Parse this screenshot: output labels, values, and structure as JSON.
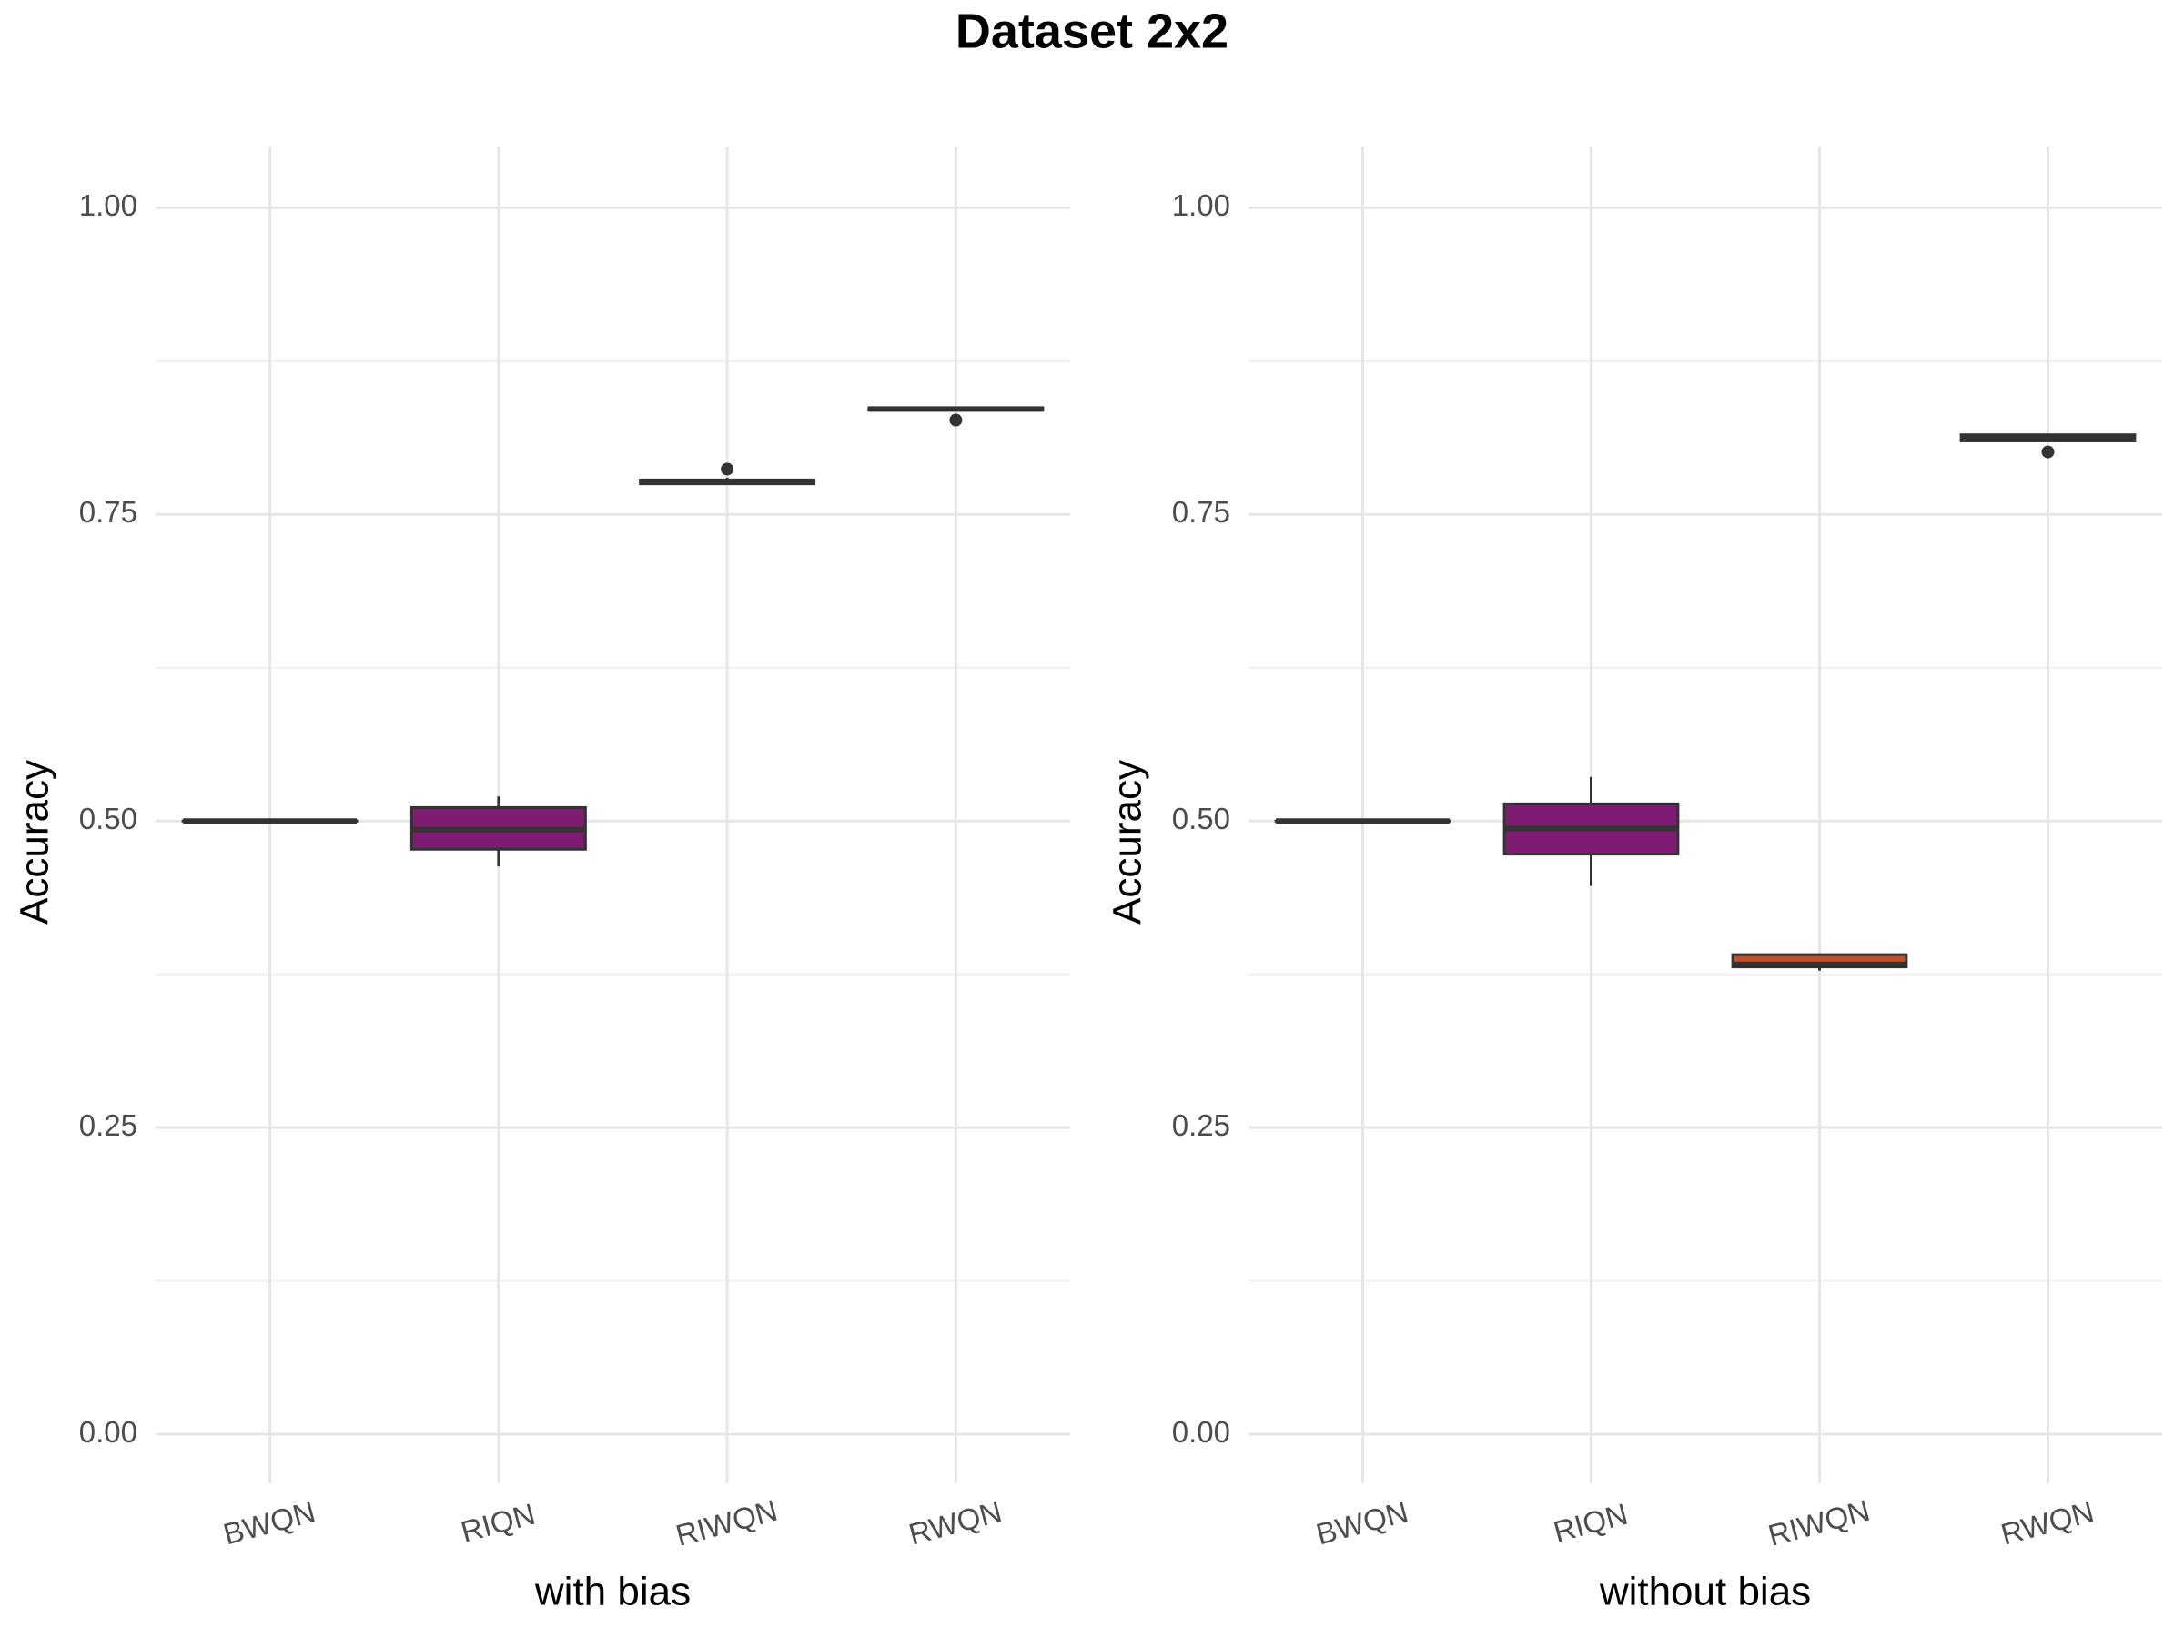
{
  "title": "Dataset 2x2",
  "chart_data": [
    {
      "type": "box",
      "xlabel": "with bias",
      "ylabel": "Accuracy",
      "categories": [
        "BWQN",
        "RIQN",
        "RIWQN",
        "RWQN"
      ],
      "colors": [
        "#9e9e9e",
        "#7e1b73",
        "#6b6b6b",
        "#6b6b6b"
      ],
      "boxes": [
        {
          "min": 0.5,
          "q1": 0.5,
          "median": 0.5,
          "q3": 0.5,
          "max": 0.5,
          "outliers": []
        },
        {
          "min": 0.463,
          "q1": 0.477,
          "median": 0.493,
          "q3": 0.511,
          "max": 0.52,
          "outliers": []
        },
        {
          "min": 0.774,
          "q1": 0.775,
          "median": 0.777,
          "q3": 0.778,
          "max": 0.78,
          "outliers": [
            0.787
          ]
        },
        {
          "min": 0.835,
          "q1": 0.835,
          "median": 0.836,
          "q3": 0.837,
          "max": 0.837,
          "outliers": [
            0.827
          ]
        }
      ],
      "ylim": [
        -0.04,
        1.05
      ],
      "yticks": [
        {
          "value": 0,
          "label": "0.00"
        },
        {
          "value": 0.25,
          "label": "0.25"
        },
        {
          "value": 0.5,
          "label": "0.50"
        },
        {
          "value": 0.75,
          "label": "0.75"
        },
        {
          "value": 1,
          "label": "1.00"
        }
      ],
      "minor_yticks": [
        0.125,
        0.375,
        0.625,
        0.875
      ],
      "grid": true
    },
    {
      "type": "box",
      "xlabel": "without bias",
      "ylabel": "Accuracy",
      "categories": [
        "BWQN",
        "RIQN",
        "RIWQN",
        "RWQN"
      ],
      "colors": [
        "#9e9e9e",
        "#7e1b73",
        "#c0502a",
        "#6b6b6b"
      ],
      "boxes": [
        {
          "min": 0.5,
          "q1": 0.5,
          "median": 0.5,
          "q3": 0.5,
          "max": 0.5,
          "outliers": []
        },
        {
          "min": 0.447,
          "q1": 0.473,
          "median": 0.494,
          "q3": 0.514,
          "max": 0.536,
          "outliers": []
        },
        {
          "min": 0.378,
          "q1": 0.381,
          "median": 0.383,
          "q3": 0.391,
          "max": 0.391,
          "outliers": []
        },
        {
          "min": 0.81,
          "q1": 0.81,
          "median": 0.812,
          "q3": 0.815,
          "max": 0.815,
          "outliers": [
            0.801
          ]
        }
      ],
      "ylim": [
        -0.04,
        1.05
      ],
      "yticks": [
        {
          "value": 0,
          "label": "0.00"
        },
        {
          "value": 0.25,
          "label": "0.25"
        },
        {
          "value": 0.5,
          "label": "0.50"
        },
        {
          "value": 0.75,
          "label": "0.75"
        },
        {
          "value": 1,
          "label": "1.00"
        }
      ],
      "minor_yticks": [
        0.125,
        0.375,
        0.625,
        0.875
      ],
      "grid": true
    }
  ]
}
